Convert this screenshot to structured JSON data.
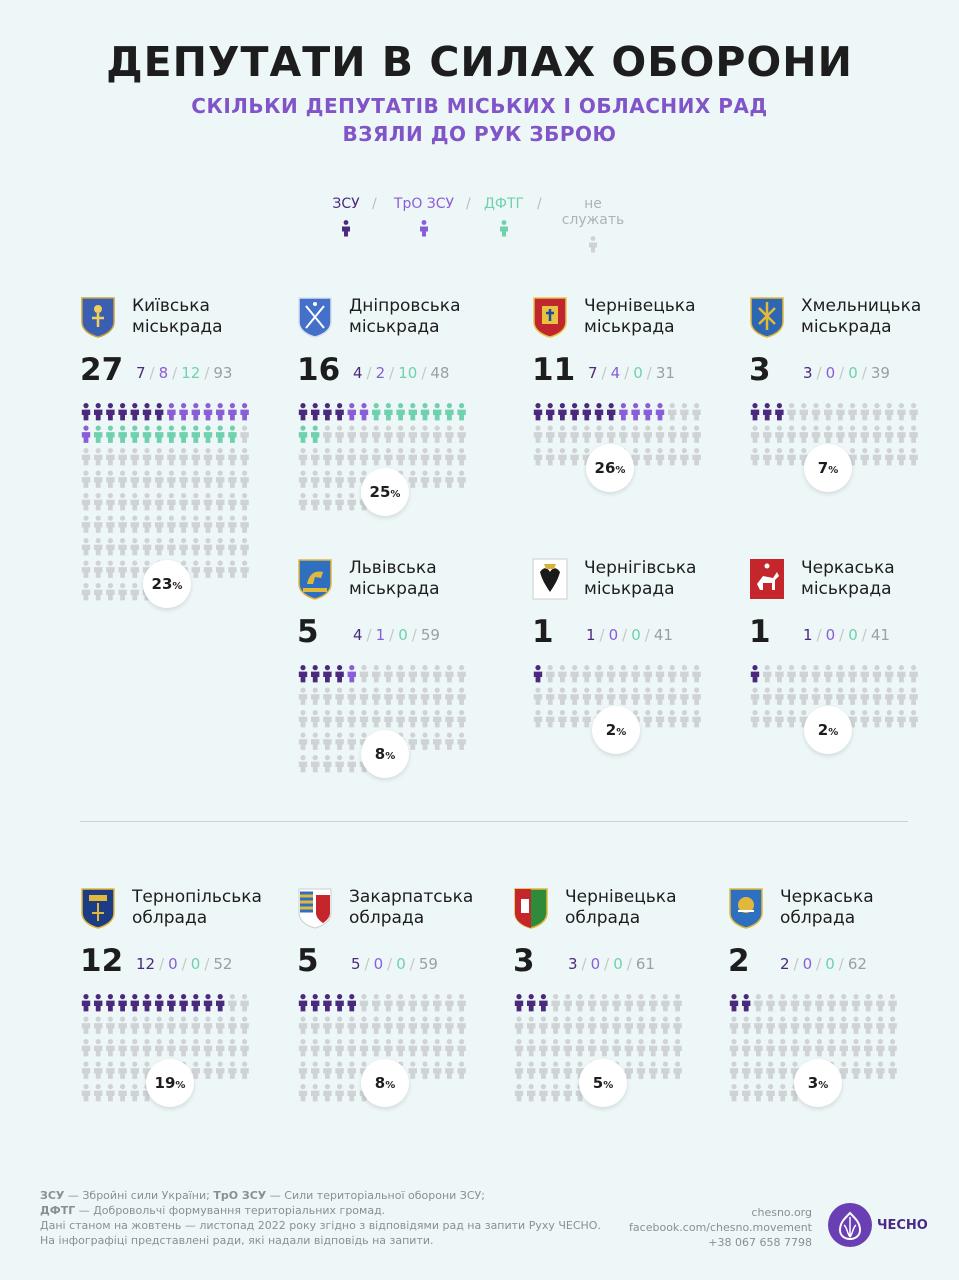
{
  "header": {
    "title": "ДЕПУТАТИ В СИЛАХ ОБОРОНИ",
    "subtitle_line1": "СКІЛЬКИ ДЕПУТАТІВ МІСЬКИХ І ОБЛАСНИХ РАД",
    "subtitle_line2": "ВЗЯЛИ ДО РУК ЗБРОЮ"
  },
  "legend": [
    {
      "label": "ЗСУ",
      "color": "#4b2a7e"
    },
    {
      "label": "ТрО ЗСУ",
      "color": "#8a5ed6"
    },
    {
      "label": "ДФТГ",
      "color": "#6fd1ae"
    },
    {
      "label": "не служать",
      "color": "#cfd3d5"
    }
  ],
  "colors": {
    "zsu": "#4b2a7e",
    "tro": "#8a5ed6",
    "dftg": "#6fd1ae",
    "none": "#cfd3d5"
  },
  "chart_data": {
    "type": "pictogram",
    "unit": "deputy",
    "councils": [
      {
        "name_line1": "Київська",
        "name_line2": "міськрада",
        "total_serving": 27,
        "zsu": 7,
        "tro": 8,
        "dftg": 12,
        "not_serving": 93,
        "percent": "23",
        "emblem": "kyiv-emblem"
      },
      {
        "name_line1": "Дніпровська",
        "name_line2": "міськрада",
        "total_serving": 16,
        "zsu": 4,
        "tro": 2,
        "dftg": 10,
        "not_serving": 48,
        "percent": "25",
        "emblem": "dnipro-emblem"
      },
      {
        "name_line1": "Чернівецька",
        "name_line2": "міськрада",
        "total_serving": 11,
        "zsu": 7,
        "tro": 4,
        "dftg": 0,
        "not_serving": 31,
        "percent": "26",
        "emblem": "chernivtsi-city-emblem"
      },
      {
        "name_line1": "Хмельницька",
        "name_line2": "міськрада",
        "total_serving": 3,
        "zsu": 3,
        "tro": 0,
        "dftg": 0,
        "not_serving": 39,
        "percent": "7",
        "emblem": "khmelnytskyi-emblem"
      },
      {
        "name_line1": "Львівська",
        "name_line2": "міськрада",
        "total_serving": 5,
        "zsu": 4,
        "tro": 1,
        "dftg": 0,
        "not_serving": 59,
        "percent": "8",
        "emblem": "lviv-emblem"
      },
      {
        "name_line1": "Чернігівська",
        "name_line2": "міськрада",
        "total_serving": 1,
        "zsu": 1,
        "tro": 0,
        "dftg": 0,
        "not_serving": 41,
        "percent": "2",
        "emblem": "chernihiv-emblem"
      },
      {
        "name_line1": "Черкаська",
        "name_line2": "міськрада",
        "total_serving": 1,
        "zsu": 1,
        "tro": 0,
        "dftg": 0,
        "not_serving": 41,
        "percent": "2",
        "emblem": "cherkasy-city-emblem"
      },
      {
        "name_line1": "Тернопільська",
        "name_line2": "облрада",
        "total_serving": 12,
        "zsu": 12,
        "tro": 0,
        "dftg": 0,
        "not_serving": 52,
        "percent": "19",
        "emblem": "ternopil-oblast-emblem"
      },
      {
        "name_line1": "Закарпатська",
        "name_line2": "облрада",
        "total_serving": 5,
        "zsu": 5,
        "tro": 0,
        "dftg": 0,
        "not_serving": 59,
        "percent": "8",
        "emblem": "zakarpattia-oblast-emblem"
      },
      {
        "name_line1": "Чернівецька",
        "name_line2": "облрада",
        "total_serving": 3,
        "zsu": 3,
        "tro": 0,
        "dftg": 0,
        "not_serving": 61,
        "percent": "5",
        "emblem": "chernivtsi-oblast-emblem"
      },
      {
        "name_line1": "Черкаська",
        "name_line2": "облрада",
        "total_serving": 2,
        "zsu": 2,
        "tro": 0,
        "dftg": 0,
        "not_serving": 62,
        "percent": "3",
        "emblem": "cherkasy-oblast-emblem"
      }
    ]
  },
  "footer": {
    "note1_b1": "ЗСУ",
    "note1_t1": " — Збройні сили України; ",
    "note1_b2": "ТрО ЗСУ",
    "note1_t2": " — Сили територіальної оборони ЗСУ;",
    "note2_b": "ДФТГ",
    "note2_t": " — Добровольчі формування територіальних громад.",
    "note3": "Дані станом на жовтень — листопад 2022 року згідно з відповідями рад на запити Руху ЧЕСНО.",
    "note4": "На інфографіці представлені ради, які надали відповідь на запити.",
    "site": "chesno.org",
    "facebook": "facebook.com/chesno.movement",
    "phone": "+38 067 658 7798",
    "brand": "ЧЕСНО"
  }
}
